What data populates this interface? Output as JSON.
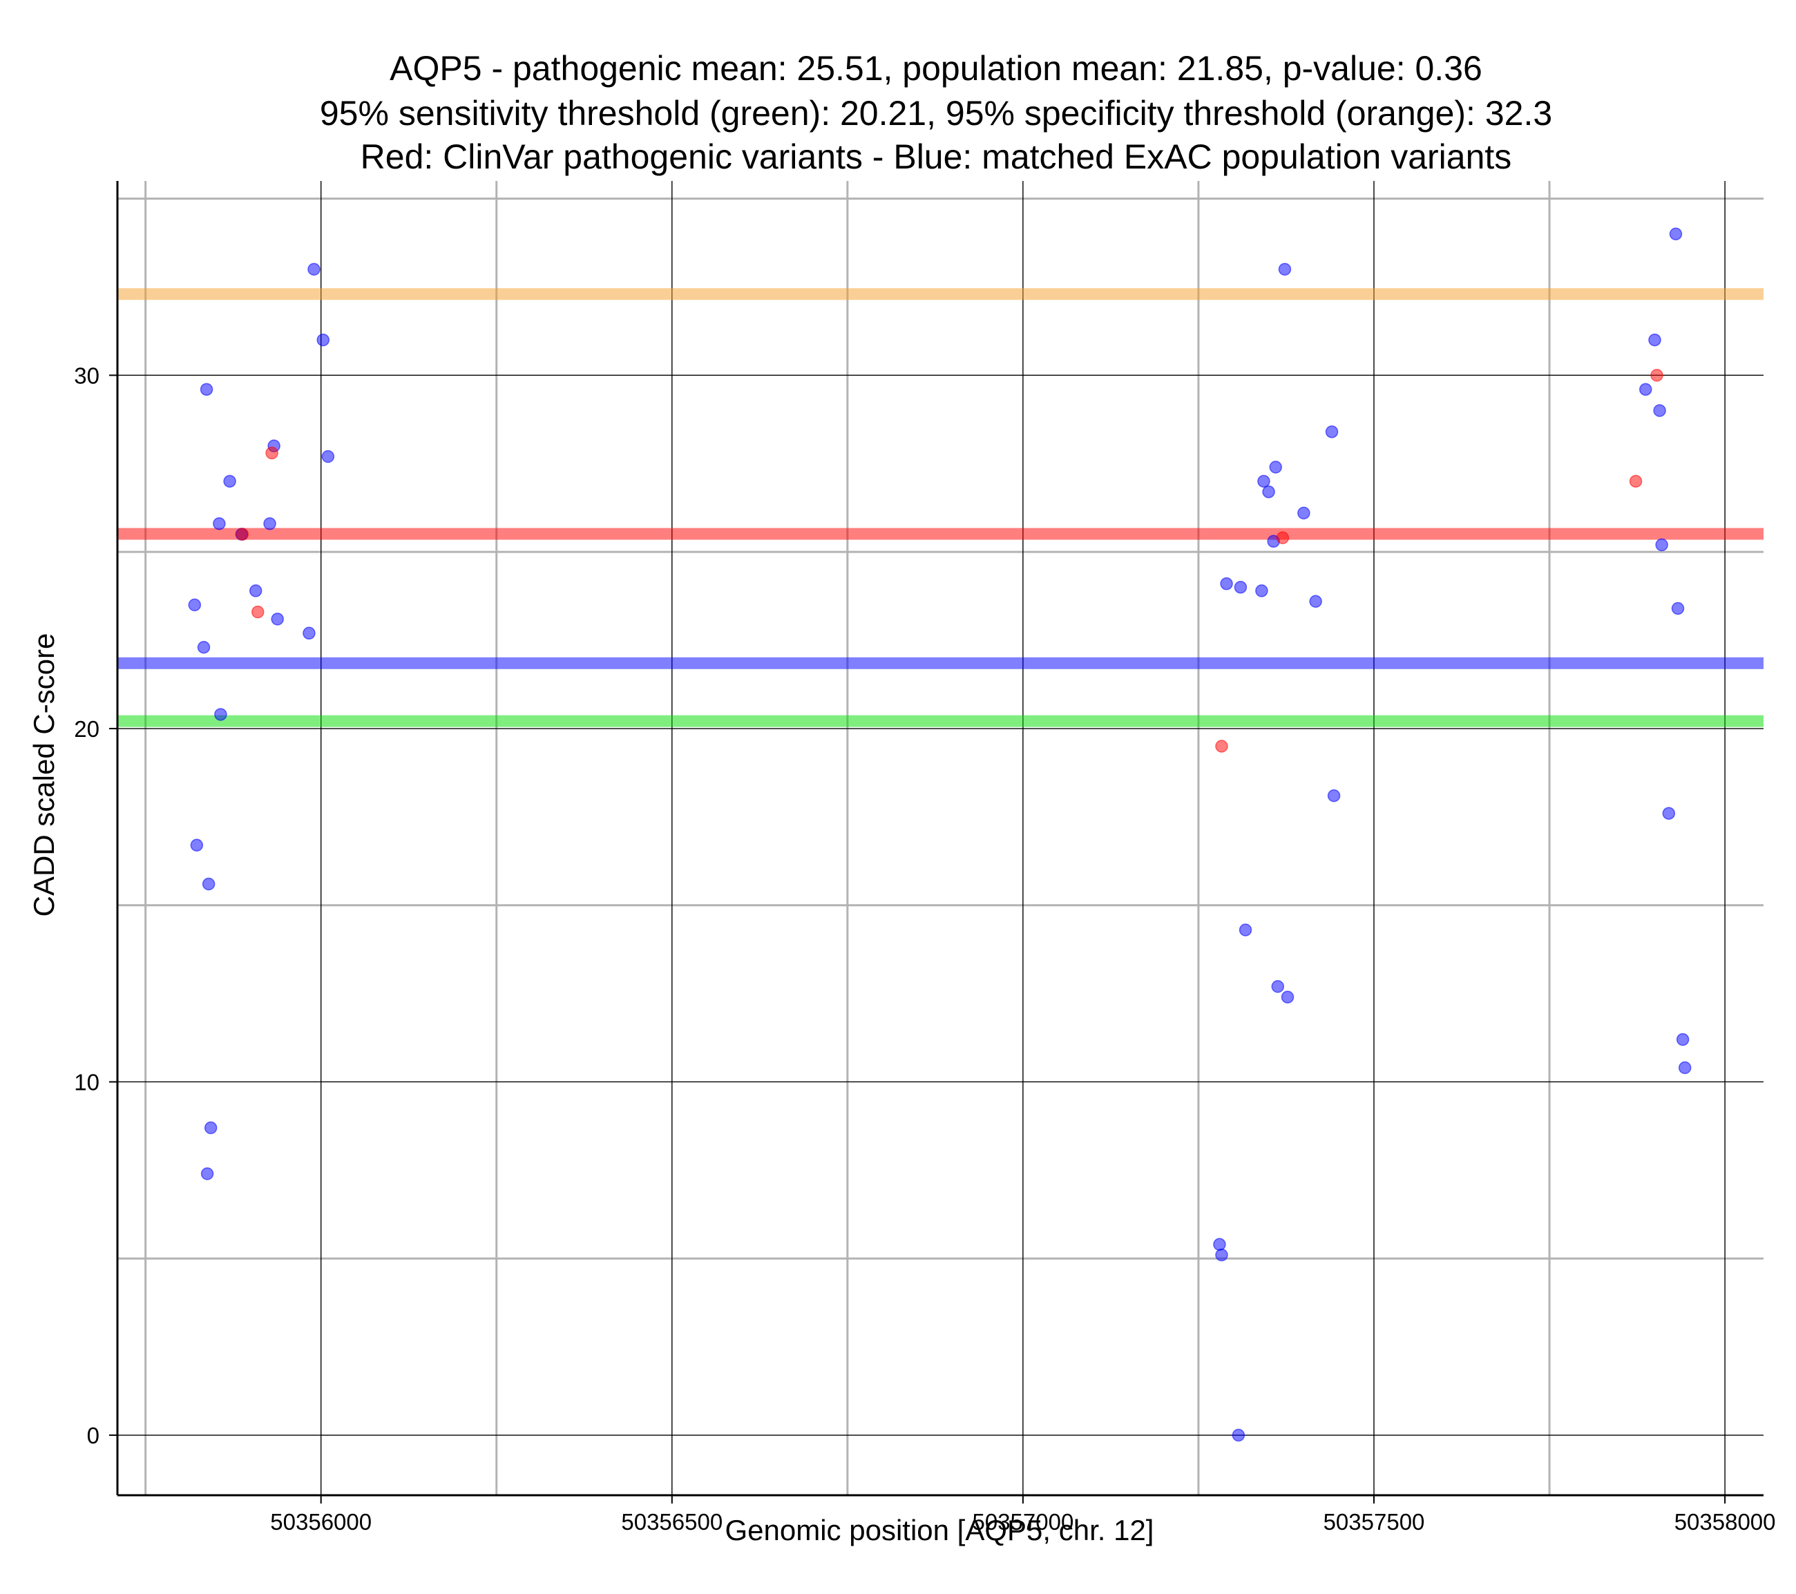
{
  "chart_data": {
    "type": "scatter",
    "title_lines": [
      "AQP5 - pathogenic mean: 25.51, population mean: 21.85, p-value: 0.36",
      "95% sensitivity threshold (green): 20.21, 95% specificity threshold (orange): 32.3",
      "Red: ClinVar pathogenic variants - Blue: matched ExAC population variants"
    ],
    "xlabel": "Genomic position [AQP5, chr. 12]",
    "ylabel": "CADD scaled C-score",
    "xlim": [
      50355710,
      50358055
    ],
    "ylim": [
      -1.7,
      35.5
    ],
    "x_ticks": [
      50356000,
      50356500,
      50357000,
      50357500,
      50358000
    ],
    "x_minor_ticks": [
      50355750,
      50356250,
      50356750,
      50357250,
      50357750
    ],
    "y_ticks": [
      0,
      10,
      20,
      30
    ],
    "y_minor_ticks": [
      5,
      15,
      25,
      35
    ],
    "grid": true,
    "colors": {
      "population": "#0000ff",
      "pathogenic": "#ff0000",
      "sensitivity": "#00dd00",
      "specificity": "#f5a02c",
      "population_mean": "#0000ff",
      "pathogenic_mean": "#ff0000"
    },
    "reference_lines": [
      {
        "name": "specificity-threshold",
        "y": 32.3,
        "color": "#f5a02c"
      },
      {
        "name": "pathogenic-mean",
        "y": 25.51,
        "color": "#ff0000"
      },
      {
        "name": "population-mean",
        "y": 21.85,
        "color": "#0000ff"
      },
      {
        "name": "sensitivity-threshold",
        "y": 20.21,
        "color": "#00dd00"
      }
    ],
    "series": [
      {
        "name": "Blue: matched ExAC population variants",
        "color": "#0000ff",
        "points": [
          [
            50355820,
            23.5
          ],
          [
            50355823,
            16.7
          ],
          [
            50355833,
            22.3
          ],
          [
            50355837,
            29.6
          ],
          [
            50355838,
            7.4
          ],
          [
            50355840,
            15.6
          ],
          [
            50355843,
            8.7
          ],
          [
            50355855,
            25.8
          ],
          [
            50355857,
            20.4
          ],
          [
            50355870,
            27.0
          ],
          [
            50355887,
            25.5
          ],
          [
            50355907,
            23.9
          ],
          [
            50355927,
            25.8
          ],
          [
            50355933,
            28.0
          ],
          [
            50355938,
            23.1
          ],
          [
            50355983,
            22.7
          ],
          [
            50355990,
            33.0
          ],
          [
            50356003,
            31.0
          ],
          [
            50356010,
            27.7
          ],
          [
            50357280,
            5.4
          ],
          [
            50357283,
            5.1
          ],
          [
            50357290,
            24.1
          ],
          [
            50357307,
            0.0
          ],
          [
            50357310,
            24.0
          ],
          [
            50357317,
            14.3
          ],
          [
            50357340,
            23.9
          ],
          [
            50357343,
            27.0
          ],
          [
            50357350,
            26.7
          ],
          [
            50357357,
            25.3
          ],
          [
            50357360,
            27.4
          ],
          [
            50357363,
            12.7
          ],
          [
            50357373,
            33.0
          ],
          [
            50357377,
            12.4
          ],
          [
            50357400,
            26.1
          ],
          [
            50357417,
            23.6
          ],
          [
            50357440,
            28.4
          ],
          [
            50357443,
            18.1
          ],
          [
            50357887,
            29.6
          ],
          [
            50357900,
            31.0
          ],
          [
            50357907,
            29.0
          ],
          [
            50357910,
            25.2
          ],
          [
            50357920,
            17.6
          ],
          [
            50357930,
            34.0
          ],
          [
            50357933,
            23.4
          ],
          [
            50357940,
            11.2
          ],
          [
            50357943,
            10.4
          ]
        ]
      },
      {
        "name": "Red: ClinVar pathogenic variants",
        "color": "#ff0000",
        "points": [
          [
            50355888,
            25.5
          ],
          [
            50355910,
            23.3
          ],
          [
            50355930,
            27.8
          ],
          [
            50357283,
            19.5
          ],
          [
            50357370,
            25.4
          ],
          [
            50357873,
            27.0
          ],
          [
            50357903,
            30.0
          ]
        ]
      }
    ]
  }
}
